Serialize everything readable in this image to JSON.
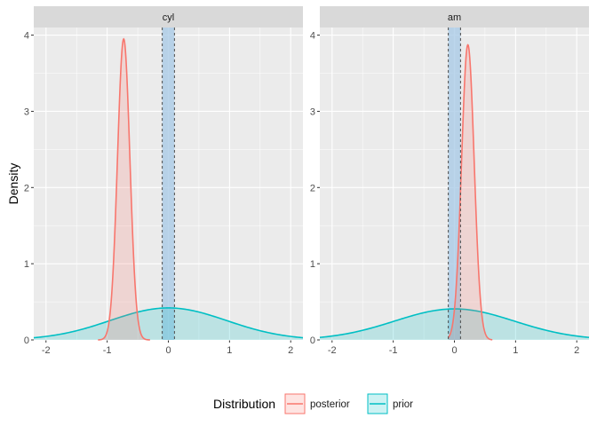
{
  "chart_data": {
    "type": "area",
    "ylabel": "Density",
    "xlabel": "",
    "legend": {
      "title": "Distribution",
      "position": "bottom",
      "entries": [
        {
          "name": "posterior",
          "color": "#F8766D"
        },
        {
          "name": "prior",
          "color": "#00BFC4"
        }
      ]
    },
    "rope": {
      "range": [
        -0.1,
        0.1
      ],
      "fill": "#a6c8e6"
    },
    "panels": [
      {
        "strip": "cyl",
        "xlim": [
          -2.2,
          2.2
        ],
        "ylim": [
          0,
          4.1
        ],
        "x_ticks": [
          -2,
          -1,
          0,
          1,
          2
        ],
        "y_ticks": [
          0,
          1,
          2,
          3,
          4
        ],
        "series": [
          {
            "name": "posterior",
            "mean": -0.73,
            "sd": 0.101,
            "range": [
              -1.15,
              -0.3
            ]
          },
          {
            "name": "prior",
            "mean": 0,
            "sd": 0.95,
            "range": [
              -2.2,
              2.2
            ]
          }
        ]
      },
      {
        "strip": "am",
        "xlim": [
          -2.2,
          2.2
        ],
        "ylim": [
          0,
          4.1
        ],
        "x_ticks": [
          -2,
          -1,
          0,
          1,
          2
        ],
        "y_ticks": [
          0,
          1,
          2,
          3,
          4
        ],
        "series": [
          {
            "name": "posterior",
            "mean": 0.22,
            "sd": 0.103,
            "range": [
              -0.1,
              0.62
            ]
          },
          {
            "name": "prior",
            "mean": 0,
            "sd": 0.98,
            "range": [
              -2.2,
              2.2
            ]
          }
        ]
      }
    ]
  }
}
